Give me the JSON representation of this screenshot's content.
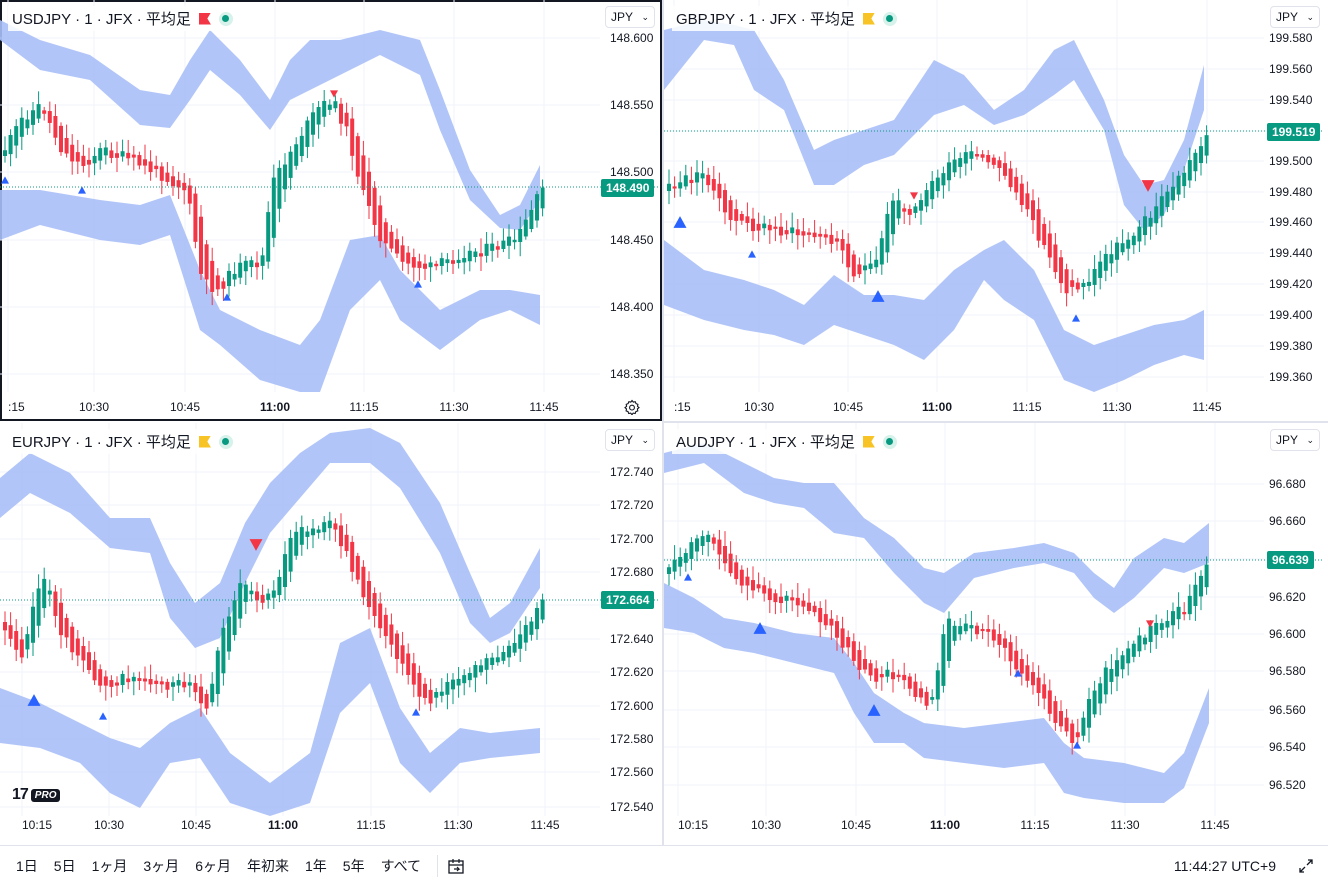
{
  "panes": [
    {
      "id": "usdjpy",
      "title": "USDJPY · 1 · JFX · 平均足",
      "flag_color": "#f23645",
      "currency": "JPY",
      "last_price": "148.490",
      "price_labels": [
        "148.600",
        "148.550",
        "148.500",
        "148.450",
        "148.400",
        "148.350"
      ],
      "time_labels": [
        ":15",
        "10:30",
        "10:45",
        "11:00",
        "11:15",
        "11:30",
        "11:45"
      ],
      "bold_time": "11:00"
    },
    {
      "id": "gbpjpy",
      "title": "GBPJPY · 1 · JFX · 平均足",
      "flag_color": "#f7c325",
      "currency": "JPY",
      "last_price": "199.519",
      "price_labels": [
        "199.580",
        "199.560",
        "199.540",
        "199.520",
        "199.500",
        "199.480",
        "199.460",
        "199.440",
        "199.420",
        "199.400",
        "199.380",
        "199.360"
      ],
      "time_labels": [
        ":15",
        "10:30",
        "10:45",
        "11:00",
        "11:15",
        "11:30",
        "11:45"
      ],
      "bold_time": "11:00"
    },
    {
      "id": "eurjpy",
      "title": "EURJPY · 1 · JFX · 平均足",
      "flag_color": "#f7c325",
      "currency": "JPY",
      "last_price": "172.664",
      "price_labels": [
        "172.740",
        "172.720",
        "172.700",
        "172.680",
        "172.660",
        "172.640",
        "172.620",
        "172.600",
        "172.580",
        "172.560",
        "172.540"
      ],
      "time_labels": [
        "10:15",
        "10:30",
        "10:45",
        "11:00",
        "11:15",
        "11:30",
        "11:45"
      ],
      "bold_time": "11:00"
    },
    {
      "id": "audjpy",
      "title": "AUDJPY · 1 · JFX · 平均足",
      "flag_color": "#f7c325",
      "currency": "JPY",
      "last_price": "96.639",
      "price_labels": [
        "96.680",
        "96.660",
        "96.640",
        "96.620",
        "96.600",
        "96.580",
        "96.560",
        "96.540",
        "96.520"
      ],
      "time_labels": [
        "10:15",
        "10:30",
        "10:45",
        "11:00",
        "11:15",
        "11:30",
        "11:45"
      ],
      "bold_time": "11:00"
    }
  ],
  "bottom_bar": {
    "ranges": [
      "1日",
      "5日",
      "1ヶ月",
      "3ヶ月",
      "6ヶ月",
      "年初来",
      "1年",
      "5年",
      "すべて"
    ],
    "clock": "11:44:27 UTC+9"
  },
  "logo": {
    "pro": "PRO"
  },
  "colors": {
    "up": "#089981",
    "down": "#f23645",
    "band": "#a8bff7",
    "marker_up": "#2962ff",
    "marker_down": "#f23645"
  }
}
